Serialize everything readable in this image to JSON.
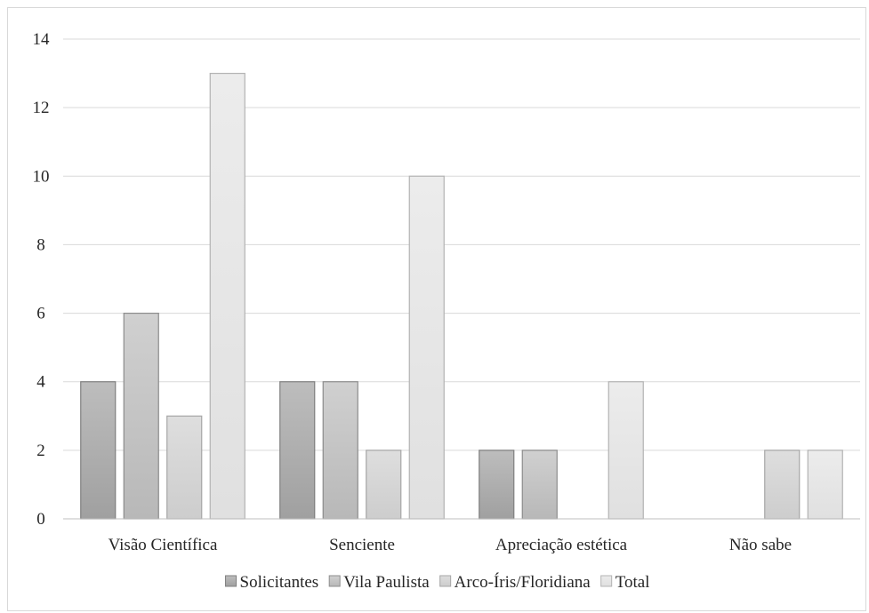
{
  "chart_data": {
    "type": "bar",
    "title": "",
    "xlabel": "",
    "ylabel": "",
    "categories": [
      "Visão Científica",
      "Senciente",
      "Apreciação estética",
      "Não sabe"
    ],
    "series": [
      {
        "name": "Solicitantes",
        "values": [
          4,
          4,
          2,
          0
        ],
        "color": "#a6a6a6"
      },
      {
        "name": "Vila Paulista",
        "values": [
          6,
          4,
          2,
          0
        ],
        "color": "#bfbfbf"
      },
      {
        "name": "Arco-Íris/Floridiana",
        "values": [
          3,
          2,
          0,
          2
        ],
        "color": "#d4d4d4"
      },
      {
        "name": "Total",
        "values": [
          13,
          10,
          4,
          2
        ],
        "color": "#e6e6e6"
      }
    ],
    "ylim": [
      0,
      14
    ],
    "yticks": [
      "0",
      "2",
      "4",
      "6",
      "8",
      "10",
      "12",
      "14"
    ],
    "grid": true,
    "legend_position": "bottom"
  }
}
